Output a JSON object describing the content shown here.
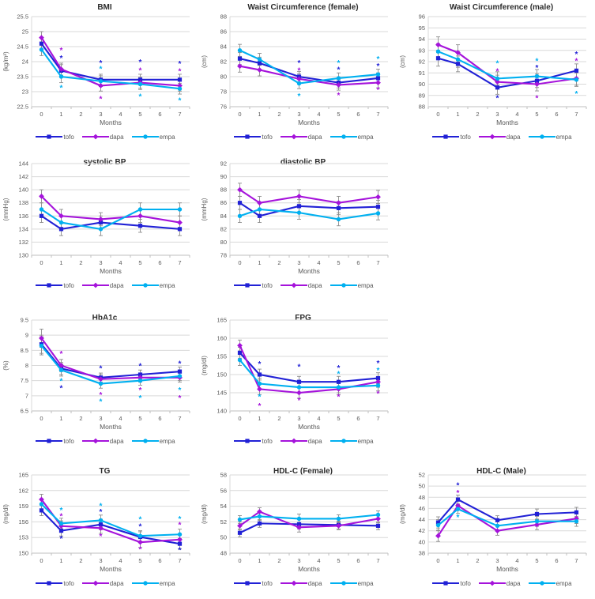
{
  "figure_title": "",
  "colors": {
    "background": "#FFFFFF",
    "grid": "#D9D9D9",
    "axis": "#BFBFBF",
    "tick_text": "#595959",
    "title_text": "#2B2B2B",
    "error_bar": "#8C8C8C"
  },
  "series_styles": {
    "tofo": {
      "color": "#2121D6",
      "marker": "square"
    },
    "dapa": {
      "color": "#A513DB",
      "marker": "diamond"
    },
    "empa": {
      "color": "#00B0F0",
      "marker": "circle"
    }
  },
  "legend": {
    "items": [
      {
        "key": "tofo",
        "label": "tofo"
      },
      {
        "key": "dapa",
        "label": "dapa"
      },
      {
        "key": "empa",
        "label": "empa"
      }
    ]
  },
  "x_axis": {
    "label": "Months",
    "ticks": [
      "0",
      "1",
      "2",
      "3",
      "4",
      "5",
      "6",
      "7"
    ]
  },
  "sig_symbol": "*",
  "chart_data": [
    {
      "id": "bmi",
      "type": "line",
      "title": "BMI",
      "unit": "(kg/m²)",
      "row": 1,
      "col": 1,
      "ylim": [
        22.5,
        25.5
      ],
      "ystep": 0.5,
      "x_months": [
        0,
        1,
        3,
        5,
        7
      ],
      "err": [
        0.2,
        0.2,
        0.18,
        0.18,
        0.18
      ],
      "series": [
        {
          "key": "tofo",
          "values": [
            24.6,
            23.7,
            23.4,
            23.4,
            23.4
          ]
        },
        {
          "key": "dapa",
          "values": [
            24.8,
            23.75,
            23.2,
            23.3,
            23.2
          ]
        },
        {
          "key": "empa",
          "values": [
            24.4,
            23.5,
            23.35,
            23.25,
            23.1
          ]
        }
      ],
      "sig_marks": [
        {
          "x": 1,
          "y": 24.4,
          "s": "dapa"
        },
        {
          "x": 1,
          "y": 24.13,
          "s": "tofo"
        },
        {
          "x": 1,
          "y": 23.15,
          "s": "empa"
        },
        {
          "x": 3,
          "y": 23.97,
          "s": "tofo"
        },
        {
          "x": 3,
          "y": 23.77,
          "s": "empa"
        },
        {
          "x": 3,
          "y": 22.78,
          "s": "dapa"
        },
        {
          "x": 5,
          "y": 24.0,
          "s": "tofo"
        },
        {
          "x": 5,
          "y": 23.72,
          "s": "dapa"
        },
        {
          "x": 5,
          "y": 22.85,
          "s": "empa"
        },
        {
          "x": 7,
          "y": 23.95,
          "s": "tofo"
        },
        {
          "x": 7,
          "y": 23.7,
          "s": "dapa"
        },
        {
          "x": 7,
          "y": 22.73,
          "s": "empa"
        }
      ]
    },
    {
      "id": "waist-female",
      "type": "line",
      "title": "Waist Circumference (female)",
      "unit": "(cm)",
      "row": 1,
      "col": 2,
      "ylim": [
        76,
        88
      ],
      "ystep": 2,
      "x_months": [
        0,
        1,
        3,
        5,
        7
      ],
      "err": [
        0.8,
        0.8,
        0.7,
        0.7,
        0.7
      ],
      "series": [
        {
          "key": "tofo",
          "values": [
            82.4,
            81.8,
            80.0,
            79.2,
            79.8
          ]
        },
        {
          "key": "dapa",
          "values": [
            81.4,
            80.9,
            79.7,
            78.9,
            79.2
          ]
        },
        {
          "key": "empa",
          "values": [
            83.5,
            82.3,
            79.1,
            79.8,
            80.3
          ]
        }
      ],
      "sig_marks": [
        {
          "x": 3,
          "y": 81.9,
          "s": "tofo"
        },
        {
          "x": 3,
          "y": 80.9,
          "s": "dapa"
        },
        {
          "x": 3,
          "y": 77.5,
          "s": "empa"
        },
        {
          "x": 5,
          "y": 81.9,
          "s": "empa"
        },
        {
          "x": 5,
          "y": 81.0,
          "s": "tofo"
        },
        {
          "x": 5,
          "y": 77.6,
          "s": "dapa"
        },
        {
          "x": 7,
          "y": 82.4,
          "s": "empa"
        },
        {
          "x": 7,
          "y": 81.5,
          "s": "tofo"
        },
        {
          "x": 7,
          "y": 78.3,
          "s": "dapa"
        }
      ]
    },
    {
      "id": "waist-male",
      "type": "line",
      "title": "Waist Circumference (male)",
      "unit": "(cm)",
      "row": 1,
      "col": 3,
      "ylim": [
        88,
        96
      ],
      "ystep": 1,
      "x_months": [
        0,
        1,
        3,
        5,
        7
      ],
      "err": [
        0.7,
        0.7,
        0.6,
        0.6,
        0.6
      ],
      "series": [
        {
          "key": "tofo",
          "values": [
            92.3,
            91.8,
            89.7,
            90.3,
            91.2
          ]
        },
        {
          "key": "dapa",
          "values": [
            93.5,
            92.8,
            90.2,
            90.0,
            90.5
          ]
        },
        {
          "key": "empa",
          "values": [
            92.9,
            92.2,
            90.5,
            90.7,
            90.4
          ]
        }
      ],
      "sig_marks": [
        {
          "x": 3,
          "y": 91.9,
          "s": "empa"
        },
        {
          "x": 3,
          "y": 91.2,
          "s": "dapa"
        },
        {
          "x": 3,
          "y": 88.8,
          "s": "tofo"
        },
        {
          "x": 5,
          "y": 92.1,
          "s": "empa"
        },
        {
          "x": 5,
          "y": 91.5,
          "s": "tofo"
        },
        {
          "x": 5,
          "y": 88.8,
          "s": "dapa"
        },
        {
          "x": 7,
          "y": 92.7,
          "s": "tofo"
        },
        {
          "x": 7,
          "y": 92.1,
          "s": "dapa"
        },
        {
          "x": 7,
          "y": 89.2,
          "s": "empa"
        }
      ]
    },
    {
      "id": "systolic-bp",
      "type": "line",
      "title": "systolic BP",
      "unit": "(mmHg)",
      "row": 2,
      "col": 1,
      "ylim": [
        130,
        144
      ],
      "ystep": 2,
      "x_months": [
        0,
        1,
        3,
        5,
        7
      ],
      "err": [
        1,
        1,
        1,
        1,
        1
      ],
      "series": [
        {
          "key": "tofo",
          "values": [
            136,
            134,
            135,
            134.5,
            134
          ]
        },
        {
          "key": "dapa",
          "values": [
            139,
            136,
            135.5,
            136,
            135
          ]
        },
        {
          "key": "empa",
          "values": [
            137,
            135,
            134,
            137,
            137
          ]
        }
      ],
      "sig_marks": []
    },
    {
      "id": "diastolic-bp",
      "type": "line",
      "title": "diastolic BP",
      "unit": "(mmHg)",
      "row": 2,
      "col": 2,
      "ylim": [
        78,
        92
      ],
      "ystep": 2,
      "x_months": [
        0,
        1,
        3,
        5,
        7
      ],
      "err": [
        1,
        1,
        1,
        1,
        1
      ],
      "series": [
        {
          "key": "tofo",
          "values": [
            86,
            84,
            85.5,
            85.2,
            85.4
          ]
        },
        {
          "key": "dapa",
          "values": [
            88,
            86,
            87,
            86,
            86.9
          ]
        },
        {
          "key": "empa",
          "values": [
            84,
            85,
            84.5,
            83.5,
            84.4
          ]
        }
      ],
      "sig_marks": []
    },
    {
      "id": "hba1c",
      "type": "line",
      "title": "HbA1c",
      "unit": "(%)",
      "row": 3,
      "col": 1,
      "ylim": [
        6.5,
        9.5
      ],
      "ystep": 0.5,
      "x_months": [
        0,
        1,
        3,
        5,
        7
      ],
      "err": [
        0.3,
        0.2,
        0.15,
        0.15,
        0.15
      ],
      "series": [
        {
          "key": "tofo",
          "values": [
            8.7,
            7.9,
            7.6,
            7.7,
            7.8
          ]
        },
        {
          "key": "dapa",
          "values": [
            8.9,
            8.0,
            7.55,
            7.6,
            7.6
          ]
        },
        {
          "key": "empa",
          "values": [
            8.65,
            7.85,
            7.4,
            7.5,
            7.65
          ]
        }
      ],
      "sig_marks": [
        {
          "x": 1,
          "y": 8.4,
          "s": "dapa"
        },
        {
          "x": 1,
          "y": 7.5,
          "s": "empa"
        },
        {
          "x": 1,
          "y": 7.27,
          "s": "tofo"
        },
        {
          "x": 3,
          "y": 7.92,
          "s": "tofo"
        },
        {
          "x": 3,
          "y": 7.05,
          "s": "dapa"
        },
        {
          "x": 3,
          "y": 6.82,
          "s": "empa"
        },
        {
          "x": 5,
          "y": 8.0,
          "s": "tofo"
        },
        {
          "x": 5,
          "y": 7.2,
          "s": "dapa"
        },
        {
          "x": 5,
          "y": 6.95,
          "s": "empa"
        },
        {
          "x": 7,
          "y": 8.08,
          "s": "tofo"
        },
        {
          "x": 7,
          "y": 7.2,
          "s": "empa"
        },
        {
          "x": 7,
          "y": 6.95,
          "s": "dapa"
        }
      ]
    },
    {
      "id": "fpg",
      "type": "line",
      "title": "FPG",
      "unit": "(mg/dl)",
      "row": 3,
      "col": 2,
      "ylim": [
        140,
        165
      ],
      "ystep": 5,
      "x_months": [
        0,
        1,
        3,
        5,
        7
      ],
      "err": [
        1.5,
        1.5,
        1.5,
        1.5,
        1.5
      ],
      "series": [
        {
          "key": "tofo",
          "values": [
            156,
            150,
            148,
            148,
            149
          ]
        },
        {
          "key": "dapa",
          "values": [
            158,
            146,
            145,
            146,
            148
          ]
        },
        {
          "key": "empa",
          "values": [
            154,
            147.5,
            146.5,
            146.5,
            147
          ]
        }
      ],
      "sig_marks": [
        {
          "x": 1,
          "y": 153,
          "s": "tofo"
        },
        {
          "x": 1,
          "y": 144,
          "s": "empa"
        },
        {
          "x": 1,
          "y": 141.5,
          "s": "dapa"
        },
        {
          "x": 3,
          "y": 152.3,
          "s": "tofo"
        },
        {
          "x": 3,
          "y": 143,
          "s": "dapa"
        },
        {
          "x": 5,
          "y": 152,
          "s": "tofo"
        },
        {
          "x": 5,
          "y": 150.3,
          "s": "empa"
        },
        {
          "x": 5,
          "y": 144,
          "s": "dapa"
        },
        {
          "x": 7,
          "y": 153.3,
          "s": "tofo"
        },
        {
          "x": 7,
          "y": 151.3,
          "s": "empa"
        },
        {
          "x": 7,
          "y": 144.9,
          "s": "dapa"
        }
      ]
    },
    {
      "id": "tg",
      "type": "line",
      "title": "TG",
      "unit": "(mg/dl)",
      "row": 4,
      "col": 1,
      "ylim": [
        150,
        165
      ],
      "ystep": 3,
      "x_months": [
        0,
        1,
        3,
        5,
        7
      ],
      "err": [
        1,
        1,
        1,
        1,
        1
      ],
      "series": [
        {
          "key": "tofo",
          "values": [
            158.2,
            154.3,
            155.5,
            153.1,
            151.8
          ]
        },
        {
          "key": "dapa",
          "values": [
            160.3,
            155.2,
            154.8,
            152.1,
            152.6
          ]
        },
        {
          "key": "empa",
          "values": [
            159.4,
            155.7,
            156.3,
            153.3,
            153.6
          ]
        }
      ],
      "sig_marks": [
        {
          "x": 1,
          "y": 158.3,
          "s": "empa"
        },
        {
          "x": 1,
          "y": 157.2,
          "s": "dapa"
        },
        {
          "x": 1,
          "y": 152.9,
          "s": "tofo"
        },
        {
          "x": 3,
          "y": 159.2,
          "s": "empa"
        },
        {
          "x": 3,
          "y": 158.0,
          "s": "tofo"
        },
        {
          "x": 3,
          "y": 153.3,
          "s": "dapa"
        },
        {
          "x": 5,
          "y": 156.6,
          "s": "empa"
        },
        {
          "x": 5,
          "y": 155.2,
          "s": "tofo"
        },
        {
          "x": 5,
          "y": 150.8,
          "s": "dapa"
        },
        {
          "x": 7,
          "y": 156.7,
          "s": "empa"
        },
        {
          "x": 7,
          "y": 155.5,
          "s": "dapa"
        },
        {
          "x": 7,
          "y": 150.7,
          "s": "tofo"
        }
      ]
    },
    {
      "id": "hdl-female",
      "type": "line",
      "title": "HDL-C (Female)",
      "unit": "(mg/dl)",
      "row": 4,
      "col": 2,
      "ylim": [
        48,
        58
      ],
      "ystep": 2,
      "x_months": [
        0,
        1,
        3,
        5,
        7
      ],
      "err": [
        0.5,
        0.5,
        0.6,
        0.5,
        0.5
      ],
      "series": [
        {
          "key": "tofo",
          "values": [
            50.6,
            51.8,
            51.7,
            51.6,
            51.5
          ]
        },
        {
          "key": "dapa",
          "values": [
            51.5,
            53.3,
            51.3,
            51.5,
            52.4
          ]
        },
        {
          "key": "empa",
          "values": [
            52.3,
            52.7,
            52.4,
            52.4,
            52.9
          ]
        }
      ],
      "sig_marks": []
    },
    {
      "id": "hdl-male",
      "type": "line",
      "title": "HDL-C (Male)",
      "unit": "(mg/dl)",
      "row": 4,
      "col": 3,
      "ylim": [
        38,
        52
      ],
      "ystep": 2,
      "x_months": [
        0,
        1,
        3,
        5,
        7
      ],
      "err": [
        1.0,
        0.8,
        0.8,
        0.9,
        0.9
      ],
      "series": [
        {
          "key": "tofo",
          "values": [
            43.5,
            47.6,
            43.9,
            45.0,
            45.3
          ]
        },
        {
          "key": "dapa",
          "values": [
            41.1,
            46.5,
            42.0,
            43.1,
            44.2
          ]
        },
        {
          "key": "empa",
          "values": [
            43.0,
            45.9,
            42.9,
            43.7,
            43.7
          ]
        }
      ],
      "sig_marks": [
        {
          "x": 1,
          "y": 50.2,
          "s": "tofo"
        },
        {
          "x": 1,
          "y": 48.9,
          "s": "dapa"
        },
        {
          "x": 1,
          "y": 44.5,
          "s": "empa"
        }
      ]
    }
  ]
}
